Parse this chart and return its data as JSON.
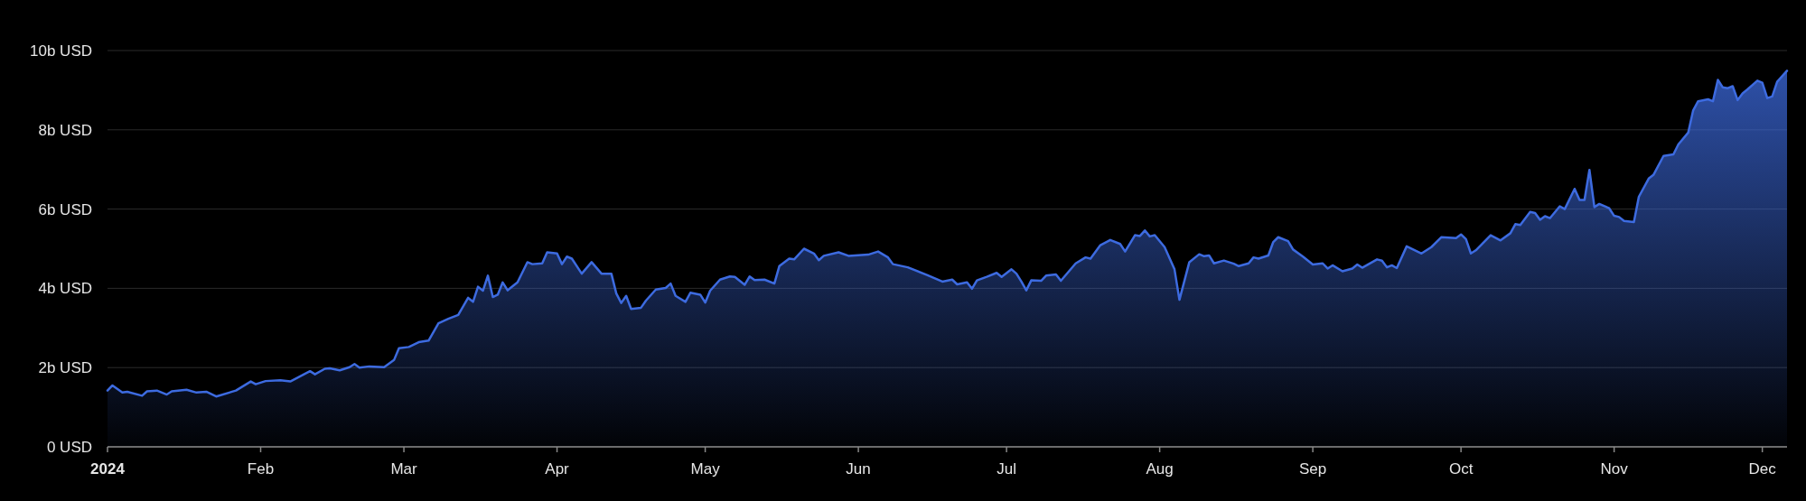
{
  "chart_data": {
    "type": "area",
    "color": "#3d6be0",
    "grid": "y",
    "xlim": [
      "2024-01-01",
      "2024-12-06"
    ],
    "ylim": [
      0,
      10
    ],
    "yticks": [
      {
        "value": 0,
        "label": "0 USD"
      },
      {
        "value": 2,
        "label": "2b USD"
      },
      {
        "value": 4,
        "label": "4b USD"
      },
      {
        "value": 6,
        "label": "6b USD"
      },
      {
        "value": 8,
        "label": "8b USD"
      },
      {
        "value": 10,
        "label": "10b USD"
      }
    ],
    "xticks": [
      {
        "value": "2024-01-01",
        "label": "2024"
      },
      {
        "value": "2024-02-01",
        "label": "Feb"
      },
      {
        "value": "2024-03-01",
        "label": "Mar"
      },
      {
        "value": "2024-04-01",
        "label": "Apr"
      },
      {
        "value": "2024-05-01",
        "label": "May"
      },
      {
        "value": "2024-06-01",
        "label": "Jun"
      },
      {
        "value": "2024-07-01",
        "label": "Jul"
      },
      {
        "value": "2024-08-01",
        "label": "Aug"
      },
      {
        "value": "2024-09-01",
        "label": "Sep"
      },
      {
        "value": "2024-10-01",
        "label": "Oct"
      },
      {
        "value": "2024-11-01",
        "label": "Nov"
      },
      {
        "value": "2024-12-01",
        "label": "Dec"
      }
    ],
    "x": [
      "2024-01-01",
      "2024-01-02",
      "2024-01-04",
      "2024-01-05",
      "2024-01-08",
      "2024-01-09",
      "2024-01-11",
      "2024-01-13",
      "2024-01-14",
      "2024-01-17",
      "2024-01-19",
      "2024-01-21",
      "2024-01-23",
      "2024-01-27",
      "2024-01-30",
      "2024-01-31",
      "2024-02-02",
      "2024-02-05",
      "2024-02-07",
      "2024-02-09",
      "2024-02-11",
      "2024-02-12",
      "2024-02-14",
      "2024-02-15",
      "2024-02-17",
      "2024-02-19",
      "2024-02-20",
      "2024-02-21",
      "2024-02-23",
      "2024-02-26",
      "2024-02-28",
      "2024-02-29",
      "2024-03-02",
      "2024-03-04",
      "2024-03-06",
      "2024-03-08",
      "2024-03-10",
      "2024-03-12",
      "2024-03-14",
      "2024-03-15",
      "2024-03-16",
      "2024-03-17",
      "2024-03-18",
      "2024-03-19",
      "2024-03-20",
      "2024-03-21",
      "2024-03-22",
      "2024-03-24",
      "2024-03-26",
      "2024-03-27",
      "2024-03-29",
      "2024-03-30",
      "2024-04-01",
      "2024-04-02",
      "2024-04-03",
      "2024-04-04",
      "2024-04-06",
      "2024-04-08",
      "2024-04-10",
      "2024-04-12",
      "2024-04-13",
      "2024-04-14",
      "2024-04-15",
      "2024-04-16",
      "2024-04-18",
      "2024-04-19",
      "2024-04-21",
      "2024-04-23",
      "2024-04-24",
      "2024-04-25",
      "2024-04-27",
      "2024-04-28",
      "2024-04-30",
      "2024-05-01",
      "2024-05-02",
      "2024-05-04",
      "2024-05-06",
      "2024-05-07",
      "2024-05-09",
      "2024-05-10",
      "2024-05-11",
      "2024-05-13",
      "2024-05-15",
      "2024-05-16",
      "2024-05-18",
      "2024-05-19",
      "2024-05-21",
      "2024-05-23",
      "2024-05-24",
      "2024-05-25",
      "2024-05-28",
      "2024-05-30",
      "2024-06-03",
      "2024-06-05",
      "2024-06-07",
      "2024-06-08",
      "2024-06-11",
      "2024-06-15",
      "2024-06-18",
      "2024-06-20",
      "2024-06-21",
      "2024-06-23",
      "2024-06-24",
      "2024-06-25",
      "2024-06-27",
      "2024-06-29",
      "2024-06-30",
      "2024-07-02",
      "2024-07-03",
      "2024-07-04",
      "2024-07-05",
      "2024-07-06",
      "2024-07-08",
      "2024-07-09",
      "2024-07-11",
      "2024-07-12",
      "2024-07-15",
      "2024-07-17",
      "2024-07-18",
      "2024-07-20",
      "2024-07-22",
      "2024-07-24",
      "2024-07-25",
      "2024-07-27",
      "2024-07-28",
      "2024-07-29",
      "2024-07-30",
      "2024-07-31",
      "2024-08-02",
      "2024-08-04",
      "2024-08-05",
      "2024-08-07",
      "2024-08-09",
      "2024-08-10",
      "2024-08-11",
      "2024-08-12",
      "2024-08-14",
      "2024-08-16",
      "2024-08-17",
      "2024-08-19",
      "2024-08-20",
      "2024-08-21",
      "2024-08-23",
      "2024-08-24",
      "2024-08-25",
      "2024-08-27",
      "2024-08-28",
      "2024-08-30",
      "2024-09-01",
      "2024-09-03",
      "2024-09-04",
      "2024-09-05",
      "2024-09-07",
      "2024-09-09",
      "2024-09-10",
      "2024-09-11",
      "2024-09-14",
      "2024-09-15",
      "2024-09-16",
      "2024-09-17",
      "2024-09-18",
      "2024-09-20",
      "2024-09-23",
      "2024-09-25",
      "2024-09-27",
      "2024-09-30",
      "2024-10-01",
      "2024-10-02",
      "2024-10-03",
      "2024-10-04",
      "2024-10-07",
      "2024-10-09",
      "2024-10-11",
      "2024-10-12",
      "2024-10-13",
      "2024-10-15",
      "2024-10-16",
      "2024-10-17",
      "2024-10-18",
      "2024-10-19",
      "2024-10-21",
      "2024-10-22",
      "2024-10-24",
      "2024-10-25",
      "2024-10-26",
      "2024-10-27",
      "2024-10-28",
      "2024-10-29",
      "2024-10-31",
      "2024-11-01",
      "2024-11-02",
      "2024-11-03",
      "2024-11-05",
      "2024-11-06",
      "2024-11-08",
      "2024-11-09",
      "2024-11-11",
      "2024-11-13",
      "2024-11-14",
      "2024-11-16",
      "2024-11-17",
      "2024-11-18",
      "2024-11-20",
      "2024-11-21",
      "2024-11-22",
      "2024-11-23",
      "2024-11-24",
      "2024-11-25",
      "2024-11-26",
      "2024-11-27",
      "2024-11-28",
      "2024-11-30",
      "2024-12-01",
      "2024-12-02",
      "2024-12-03",
      "2024-12-04",
      "2024-12-06"
    ],
    "values": [
      1.42,
      1.55,
      1.37,
      1.39,
      1.29,
      1.4,
      1.42,
      1.32,
      1.4,
      1.44,
      1.37,
      1.39,
      1.27,
      1.42,
      1.65,
      1.58,
      1.66,
      1.68,
      1.65,
      1.78,
      1.91,
      1.83,
      1.97,
      1.98,
      1.93,
      2.01,
      2.09,
      2.0,
      2.03,
      2.01,
      2.19,
      2.49,
      2.52,
      2.64,
      2.68,
      3.12,
      3.23,
      3.33,
      3.76,
      3.66,
      4.04,
      3.94,
      4.32,
      3.78,
      3.84,
      4.15,
      3.95,
      4.15,
      4.66,
      4.61,
      4.63,
      4.91,
      4.88,
      4.61,
      4.8,
      4.75,
      4.37,
      4.66,
      4.37,
      4.37,
      3.87,
      3.63,
      3.81,
      3.48,
      3.51,
      3.69,
      3.97,
      4.01,
      4.12,
      3.81,
      3.66,
      3.89,
      3.84,
      3.64,
      3.94,
      4.22,
      4.3,
      4.29,
      4.09,
      4.3,
      4.21,
      4.22,
      4.12,
      4.56,
      4.75,
      4.73,
      5.0,
      4.88,
      4.71,
      4.82,
      4.91,
      4.82,
      4.85,
      4.93,
      4.78,
      4.61,
      4.53,
      4.33,
      4.17,
      4.22,
      4.1,
      4.15,
      3.99,
      4.2,
      4.29,
      4.39,
      4.29,
      4.48,
      4.37,
      4.17,
      3.95,
      4.2,
      4.19,
      4.32,
      4.35,
      4.19,
      4.63,
      4.78,
      4.75,
      5.09,
      5.22,
      5.12,
      4.93,
      5.34,
      5.32,
      5.46,
      5.31,
      5.34,
      5.04,
      4.48,
      3.71,
      4.66,
      4.86,
      4.81,
      4.83,
      4.63,
      4.7,
      4.62,
      4.56,
      4.63,
      4.78,
      4.75,
      4.83,
      5.17,
      5.29,
      5.19,
      4.98,
      4.8,
      4.6,
      4.63,
      4.5,
      4.58,
      4.43,
      4.5,
      4.6,
      4.52,
      4.73,
      4.7,
      4.53,
      4.58,
      4.51,
      5.06,
      4.88,
      5.04,
      5.29,
      5.27,
      5.36,
      5.24,
      4.88,
      4.96,
      5.34,
      5.21,
      5.39,
      5.62,
      5.6,
      5.93,
      5.9,
      5.73,
      5.82,
      5.77,
      6.07,
      6.0,
      6.51,
      6.23,
      6.23,
      6.99,
      6.05,
      6.13,
      6.02,
      5.83,
      5.8,
      5.7,
      5.67,
      6.31,
      6.77,
      6.87,
      7.34,
      7.38,
      7.63,
      7.93,
      8.49,
      8.72,
      8.77,
      8.72,
      9.26,
      9.07,
      9.05,
      9.1,
      8.75,
      8.92,
      9.02,
      9.24,
      9.19,
      8.8,
      8.84,
      9.21,
      9.49
    ]
  }
}
